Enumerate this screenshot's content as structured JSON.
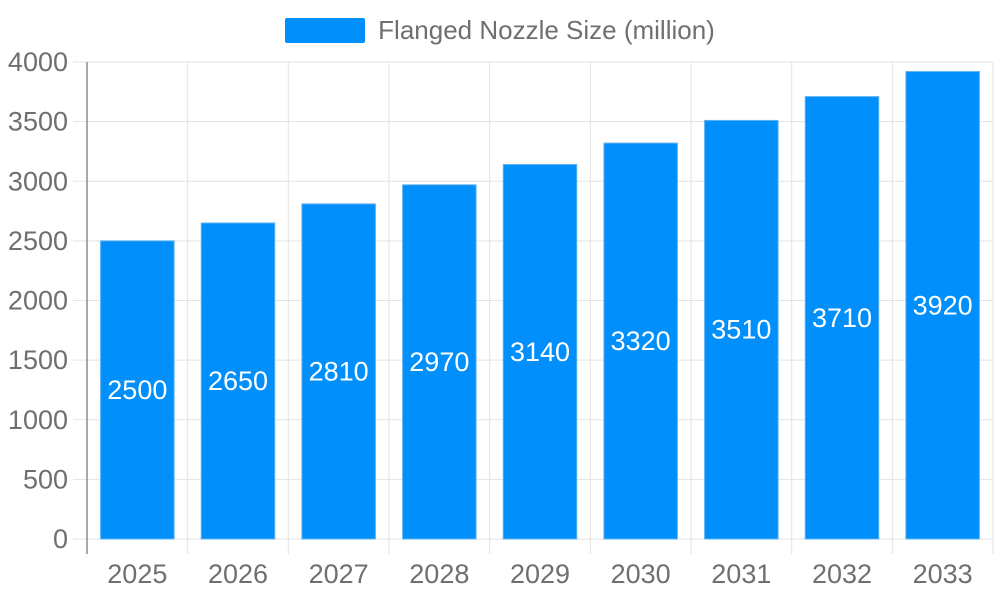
{
  "legend": {
    "swatch_color": "#008FFB"
  },
  "chart_data": {
    "type": "bar",
    "title": "",
    "xlabel": "",
    "ylabel": "",
    "categories": [
      "2025",
      "2026",
      "2027",
      "2028",
      "2029",
      "2030",
      "2031",
      "2032",
      "2033"
    ],
    "series": [
      {
        "name": "Flanged Nozzle Size (million)",
        "values": [
          2500,
          2650,
          2810,
          2970,
          3140,
          3320,
          3510,
          3710,
          3920
        ],
        "color": "#008FFB"
      }
    ],
    "ylim": [
      0,
      4000
    ],
    "yticks": [
      0,
      500,
      1000,
      1500,
      2000,
      2500,
      3000,
      3500,
      4000
    ],
    "grid": true,
    "legend_position": "top",
    "bar_value_labels": true,
    "bar_label_position": "middle",
    "colors": {
      "bar": "#008FFB",
      "bar_edge": "#5cb2f2",
      "bar_label_text": "#ffffff",
      "axis_text": "#6f6f6f",
      "grid_line": "#e3e3e3",
      "axis_line": "#8b8b8b"
    }
  }
}
